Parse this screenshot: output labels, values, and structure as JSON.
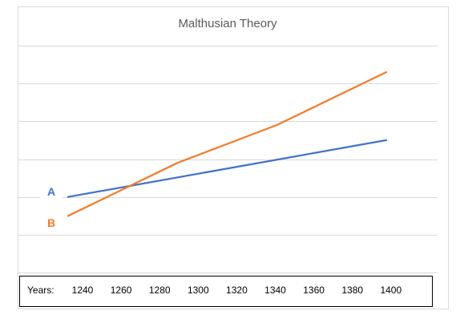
{
  "chart_data": {
    "type": "line",
    "title": "Malthusian Theory",
    "x_axis_prefix": "Years:",
    "categories": [
      "1240",
      "1260",
      "1280",
      "1300",
      "1320",
      "1340",
      "1360",
      "1380",
      "1400"
    ],
    "series": [
      {
        "name": "A",
        "color": "#4472C4",
        "points": [
          [
            1240,
            2.0
          ],
          [
            1400,
            3.5
          ]
        ]
      },
      {
        "name": "B",
        "color": "#ED7D31",
        "points": [
          [
            1240,
            1.5
          ],
          [
            1295,
            2.9
          ],
          [
            1345,
            3.9
          ],
          [
            1400,
            5.3
          ]
        ]
      }
    ],
    "xlim": [
      1240,
      1400
    ],
    "ylim": [
      0,
      6
    ],
    "grid": true
  }
}
